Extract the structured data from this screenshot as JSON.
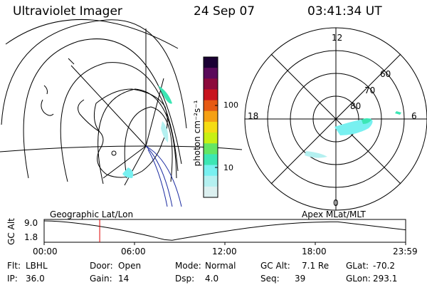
{
  "header": {
    "instrument": "Ultraviolet Imager",
    "date": "24 Sep 07",
    "time": "03:41:34 UT"
  },
  "left_map": {
    "name": "Geographic Lat/Lon"
  },
  "right_map": {
    "name": "Apex MLat/MLT",
    "mlt_labels": {
      "top": "12",
      "left": "18",
      "right": "6",
      "bottom": "0"
    },
    "lat_labels": [
      "60",
      "70",
      "80"
    ]
  },
  "colorbar": {
    "unit_label": "photon cm⁻²s⁻¹",
    "ticks": [
      "100",
      "10"
    ],
    "colors": [
      "#1a0033",
      "#5a0a5a",
      "#8c0a3c",
      "#c8141e",
      "#e65a14",
      "#f5a014",
      "#f5dc14",
      "#c8f014",
      "#64e664",
      "#3ce6b4",
      "#78f0f0",
      "#b4f0f0",
      "#dcf0f0"
    ]
  },
  "altitude_plot": {
    "ylabel": "GC Alt",
    "yticks": [
      "9.0",
      "1.8"
    ],
    "xticks": [
      "00:00",
      "06:00",
      "12:00",
      "18:00",
      "23:59"
    ],
    "marker_time_hours": 3.69,
    "marker_color": "#e00000"
  },
  "info": {
    "row1": [
      {
        "label": "Flt:",
        "value": "LBHL"
      },
      {
        "label": "Door:",
        "value": "Open"
      },
      {
        "label": "Mode:",
        "value": "Normal"
      },
      {
        "label": "GC Alt:",
        "value": "7.1 Re"
      },
      {
        "label": "GLat:",
        "value": "-70.2"
      }
    ],
    "row2": [
      {
        "label": "IP:",
        "value": "36.0"
      },
      {
        "label": "Gain:",
        "value": "14"
      },
      {
        "label": "Dsp:",
        "value": "4.0"
      },
      {
        "label": "Seq:",
        "value": "39"
      },
      {
        "label": "GLon:",
        "value": "293.1"
      }
    ]
  }
}
